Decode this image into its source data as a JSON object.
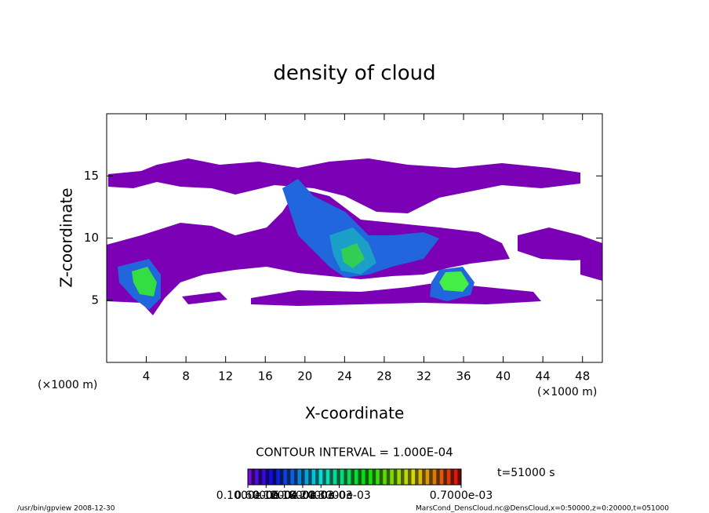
{
  "chart_data": {
    "type": "contour",
    "title": "density of cloud",
    "xlabel": "X-coordinate",
    "ylabel": "Z-coordinate",
    "xunit": "(×1000 m)",
    "yunit": "(×1000 m)",
    "xlim": [
      0,
      50
    ],
    "ylim": [
      0,
      20
    ],
    "xticks": [
      4,
      8,
      12,
      16,
      20,
      24,
      28,
      32,
      36,
      40,
      44,
      48
    ],
    "yticks": [
      5,
      10,
      15
    ],
    "contour_interval": "CONTOUR INTERVAL = 1.000E-04",
    "time": "t=51000 s",
    "colorbar_lim": [
      0,
      0.0007
    ],
    "colorbar_ticks": [
      {
        "value": 1e-07,
        "label": "0.1000e-06"
      },
      {
        "value": 6e-05,
        "label": "0.6000e-04"
      },
      {
        "value": 0.00012,
        "label": "0.1200e-03"
      },
      {
        "value": 0.00018,
        "label": "0.1800e-03"
      },
      {
        "value": 0.00024,
        "label": "0.2400e-03"
      },
      {
        "value": 0.0003,
        "label": "0.3000e-03"
      },
      {
        "value": 0.0007,
        "label": "0.7000e-03"
      }
    ],
    "footer_left": "/usr/bin/gpview  2008-12-30",
    "footer_right": "MarsCond_DensCloud.nc@DensCloud,x=0:50000,z=0:20000,t=051000"
  }
}
